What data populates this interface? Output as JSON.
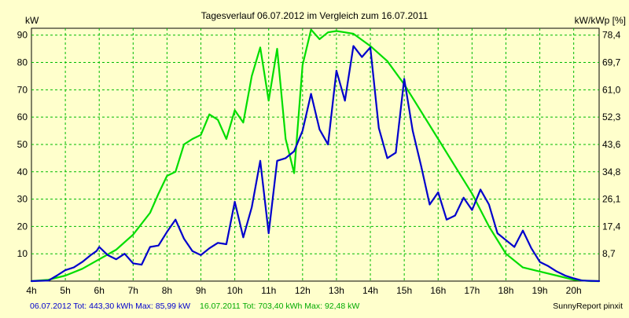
{
  "chart_data": {
    "type": "line",
    "title": "Tagesverlauf 06.07.2012 im Vergleich zum 16.07.2011",
    "ylabel_left": "kW",
    "ylabel_right": "kW/kWp [%]",
    "xlabel": "",
    "x_ticks": [
      "4h",
      "5h",
      "6h",
      "7h",
      "8h",
      "9h",
      "10h",
      "11h",
      "12h",
      "13h",
      "14h",
      "15h",
      "16h",
      "17h",
      "18h",
      "19h",
      "20h"
    ],
    "y_ticks_left": [
      "10",
      "20",
      "30",
      "40",
      "50",
      "60",
      "70",
      "80",
      "90"
    ],
    "y_ticks_right": [
      "8,7",
      "17,4",
      "26,1",
      "34,8",
      "43,6",
      "52,3",
      "61,0",
      "69,7",
      "78,4"
    ],
    "xlim": [
      4,
      20.75
    ],
    "ylim": [
      0,
      92.5
    ],
    "grid": true,
    "series": [
      {
        "name": "06.07.2012",
        "color": "#0000CC",
        "x": [
          4.0,
          4.5,
          4.75,
          5.0,
          5.25,
          5.5,
          5.75,
          5.92,
          6.0,
          6.25,
          6.5,
          6.75,
          7.0,
          7.25,
          7.5,
          7.75,
          8.0,
          8.25,
          8.5,
          8.75,
          9.0,
          9.25,
          9.5,
          9.75,
          10.0,
          10.25,
          10.5,
          10.75,
          11.0,
          11.25,
          11.5,
          11.75,
          12.0,
          12.25,
          12.5,
          12.75,
          13.0,
          13.25,
          13.5,
          13.75,
          14.0,
          14.25,
          14.5,
          14.75,
          15.0,
          15.25,
          15.5,
          15.75,
          16.0,
          16.25,
          16.5,
          16.75,
          17.0,
          17.25,
          17.5,
          17.75,
          18.0,
          18.25,
          18.5,
          18.75,
          19.0,
          19.25,
          19.5,
          19.75,
          20.0,
          20.25,
          20.75
        ],
        "y": [
          0.0,
          0.2,
          2.0,
          4.0,
          5.0,
          7.0,
          9.5,
          11.0,
          12.5,
          9.5,
          8.0,
          10.0,
          6.5,
          6.0,
          12.5,
          13.0,
          18.0,
          22.5,
          15.5,
          11.0,
          9.5,
          12.0,
          14.0,
          13.5,
          29.0,
          16.0,
          27.0,
          44.0,
          17.5,
          44.0,
          45.0,
          47.5,
          55.0,
          68.5,
          55.5,
          50.0,
          77.0,
          66.0,
          86.0,
          82.0,
          85.5,
          56.0,
          45.0,
          47.0,
          74.0,
          55.0,
          42.0,
          28.0,
          32.5,
          22.5,
          24.0,
          30.5,
          26.0,
          33.5,
          28.0,
          17.5,
          15.0,
          12.5,
          18.5,
          12.0,
          7.0,
          5.5,
          3.5,
          2.0,
          1.0,
          0.2,
          0.0
        ]
      },
      {
        "name": "16.07.2011",
        "color": "#00DD00",
        "x": [
          4.0,
          4.5,
          5.0,
          5.5,
          6.0,
          6.5,
          7.0,
          7.5,
          7.75,
          8.0,
          8.25,
          8.5,
          8.75,
          9.0,
          9.25,
          9.5,
          9.75,
          10.0,
          10.25,
          10.5,
          10.75,
          11.0,
          11.25,
          11.5,
          11.75,
          12.0,
          12.25,
          12.5,
          12.75,
          13.0,
          13.25,
          13.5,
          14.0,
          14.5,
          15.0,
          15.5,
          16.0,
          16.5,
          17.0,
          17.5,
          18.0,
          18.5,
          19.0,
          19.5,
          20.0,
          20.5,
          20.75
        ],
        "y": [
          0.0,
          0.5,
          2.0,
          4.5,
          8.0,
          11.5,
          17.0,
          25.0,
          32.0,
          38.5,
          40.0,
          50.0,
          52.0,
          53.5,
          61.0,
          59.0,
          52.0,
          62.5,
          58.0,
          75.0,
          85.5,
          66.0,
          85.0,
          52.0,
          39.5,
          79.0,
          92.0,
          88.5,
          91.0,
          91.5,
          91.0,
          90.5,
          86.0,
          80.5,
          72.0,
          62.0,
          52.0,
          42.0,
          32.0,
          20.0,
          10.0,
          5.0,
          3.5,
          2.0,
          0.5,
          0.0,
          0.0
        ]
      }
    ],
    "footer": {
      "left_series1": "06.07.2012 Tot: 443,30 kWh Max: 85,99 kW",
      "left_series2": "16.07.2011 Tot: 703,40 kWh Max: 92,48 kW",
      "right": "SunnyReport pinxit"
    }
  },
  "colors": {
    "background": "#FFFFCC",
    "plot_background": "#FFFFCC",
    "grid": "#00BB00",
    "series1": "#0000CC",
    "series2": "#00DD00"
  }
}
